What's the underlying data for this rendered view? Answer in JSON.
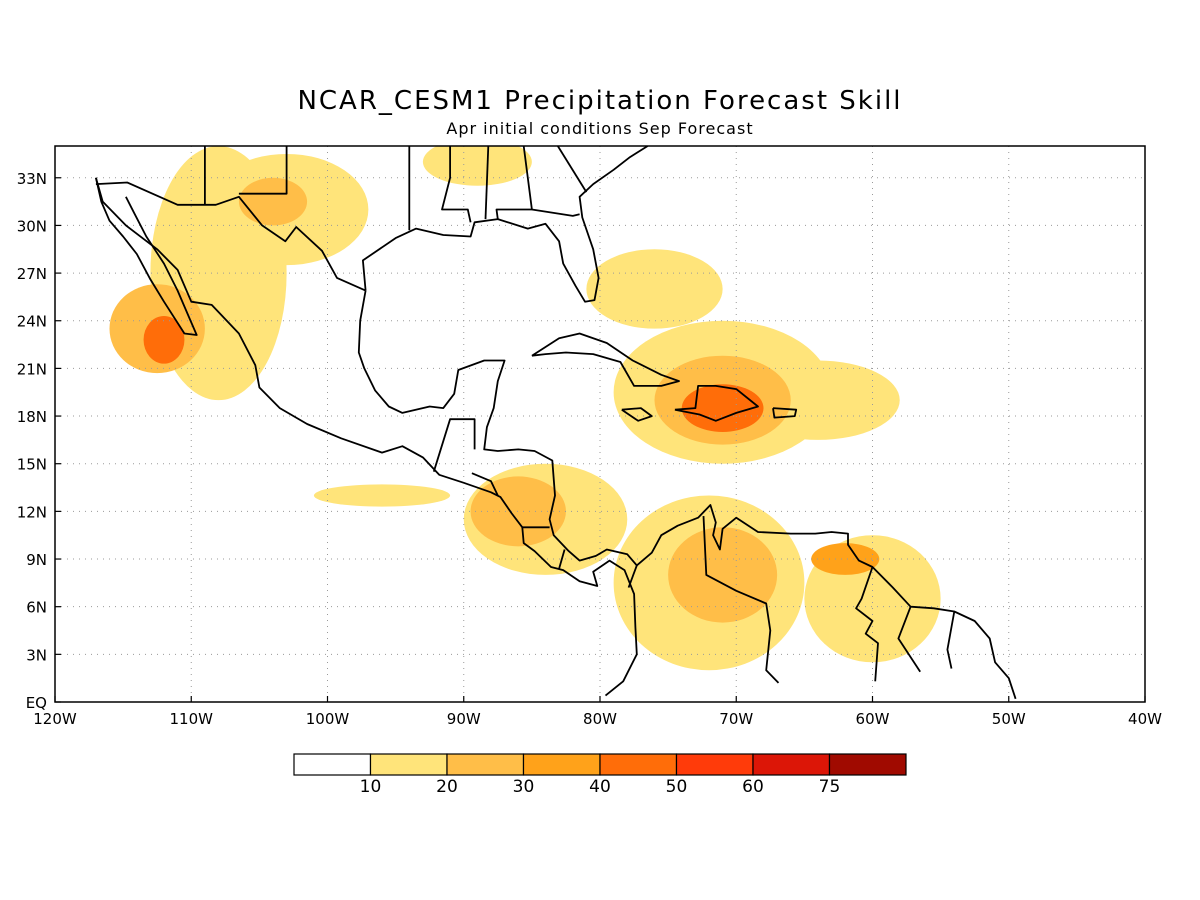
{
  "title": "NCAR_CESM1 Precipitation Forecast Skill",
  "subtitle": "Apr initial conditions  Sep Forecast",
  "map": {
    "lon_range": [
      -120,
      -40
    ],
    "lat_range": [
      0,
      35
    ],
    "lon_ticks": [
      {
        "value": -120,
        "label": "120W"
      },
      {
        "value": -110,
        "label": "110W"
      },
      {
        "value": -100,
        "label": "100W"
      },
      {
        "value": -90,
        "label": "90W"
      },
      {
        "value": -80,
        "label": "80W"
      },
      {
        "value": -70,
        "label": "70W"
      },
      {
        "value": -60,
        "label": "60W"
      },
      {
        "value": -50,
        "label": "50W"
      },
      {
        "value": -40,
        "label": "40W"
      }
    ],
    "lat_ticks": [
      {
        "value": 0,
        "label": "EQ"
      },
      {
        "value": 3,
        "label": "3N"
      },
      {
        "value": 6,
        "label": "6N"
      },
      {
        "value": 9,
        "label": "9N"
      },
      {
        "value": 12,
        "label": "12N"
      },
      {
        "value": 15,
        "label": "15N"
      },
      {
        "value": 18,
        "label": "18N"
      },
      {
        "value": 21,
        "label": "21N"
      },
      {
        "value": 24,
        "label": "24N"
      },
      {
        "value": 27,
        "label": "27N"
      },
      {
        "value": 30,
        "label": "30N"
      },
      {
        "value": 33,
        "label": "33N"
      }
    ],
    "grid": true
  },
  "colorbar": {
    "colors": [
      "#ffffff",
      "#ffe47a",
      "#ffbe48",
      "#ffa21a",
      "#ff6d09",
      "#ff3b0a",
      "#dc1607",
      "#a00a00"
    ],
    "labels": [
      "10",
      "20",
      "30",
      "40",
      "50",
      "60",
      "75"
    ]
  },
  "chart_data": {
    "type": "heatmap",
    "title": "NCAR_CESM1 Precipitation Forecast Skill",
    "subtitle": "Apr initial conditions  Sep Forecast",
    "levels": [
      10,
      20,
      30,
      40,
      50,
      60,
      75
    ],
    "blobs": [
      {
        "lon": -112.5,
        "lat": 23.5,
        "rx": 3.5,
        "ry": 2.8,
        "level": 2
      },
      {
        "lon": -112.0,
        "lat": 22.8,
        "rx": 1.5,
        "ry": 1.5,
        "level": 4
      },
      {
        "lon": -108.0,
        "lat": 27.0,
        "rx": 5.0,
        "ry": 8.0,
        "level": 1
      },
      {
        "lon": -103.0,
        "lat": 31.0,
        "rx": 6.0,
        "ry": 3.5,
        "level": 1
      },
      {
        "lon": -104.0,
        "lat": 31.5,
        "rx": 2.5,
        "ry": 1.5,
        "level": 2
      },
      {
        "lon": -89.0,
        "lat": 34.0,
        "rx": 4.0,
        "ry": 1.5,
        "level": 1
      },
      {
        "lon": -76.0,
        "lat": 26.0,
        "rx": 5.0,
        "ry": 2.5,
        "level": 1
      },
      {
        "lon": -71.0,
        "lat": 19.5,
        "rx": 8.0,
        "ry": 4.5,
        "level": 1
      },
      {
        "lon": -71.0,
        "lat": 19.0,
        "rx": 5.0,
        "ry": 2.8,
        "level": 2
      },
      {
        "lon": -71.0,
        "lat": 18.5,
        "rx": 3.0,
        "ry": 1.5,
        "level": 4
      },
      {
        "lon": -64.0,
        "lat": 19.0,
        "rx": 6.0,
        "ry": 2.5,
        "level": 1
      },
      {
        "lon": -96.0,
        "lat": 13.0,
        "rx": 5.0,
        "ry": 0.7,
        "level": 1
      },
      {
        "lon": -84.0,
        "lat": 11.5,
        "rx": 6.0,
        "ry": 3.5,
        "level": 1
      },
      {
        "lon": -86.0,
        "lat": 12.0,
        "rx": 3.5,
        "ry": 2.2,
        "level": 2
      },
      {
        "lon": -72.0,
        "lat": 7.5,
        "rx": 7.0,
        "ry": 5.5,
        "level": 1
      },
      {
        "lon": -71.0,
        "lat": 8.0,
        "rx": 4.0,
        "ry": 3.0,
        "level": 2
      },
      {
        "lon": -60.0,
        "lat": 6.5,
        "rx": 5.0,
        "ry": 4.0,
        "level": 1
      },
      {
        "lon": -62.0,
        "lat": 9.0,
        "rx": 2.5,
        "ry": 1.0,
        "level": 3
      }
    ]
  }
}
